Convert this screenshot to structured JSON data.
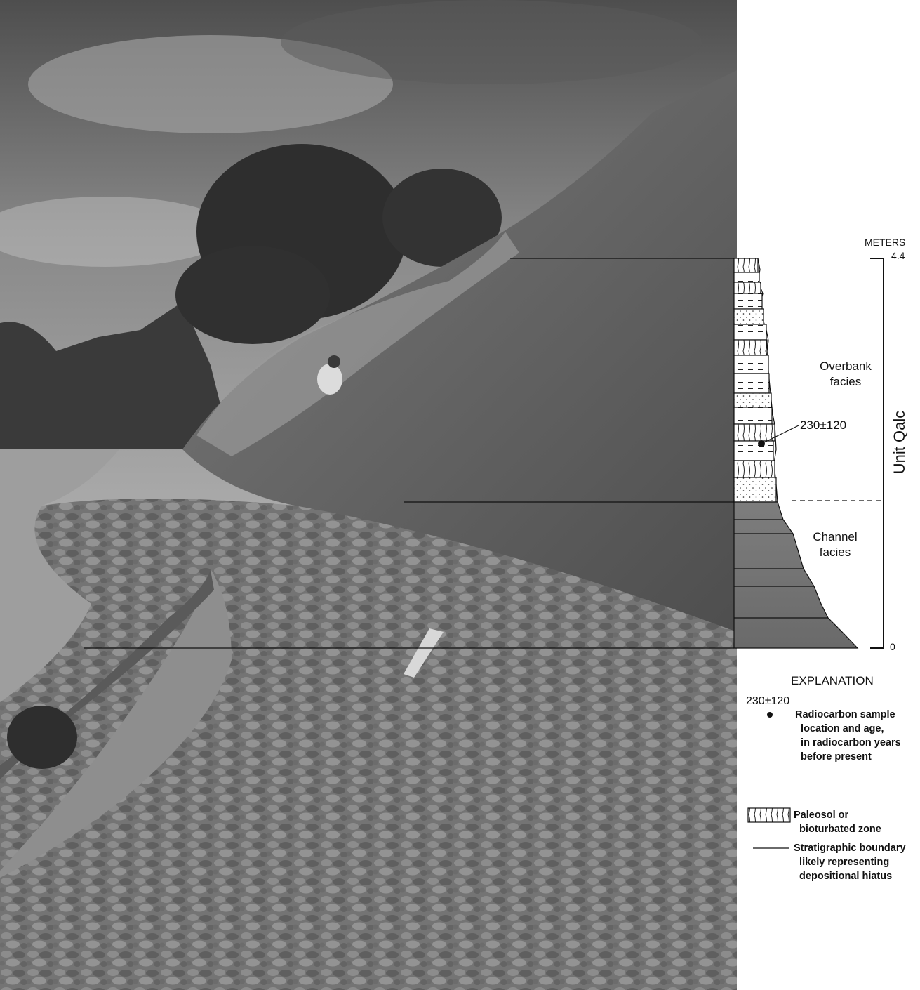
{
  "photo": {
    "description_icon": "field-photo-riverbank-icon"
  },
  "column": {
    "units": "METERS",
    "top_value": "4.4",
    "bottom_value": "0",
    "unit_name": "Unit Qalc",
    "overbank_label": "Overbank\nfacies",
    "channel_label": "Channel\nfacies",
    "sample_age": "230±120"
  },
  "explanation": {
    "title": "EXPLANATION",
    "radiocarbon_age": "230±120",
    "radiocarbon_text": "Radiocarbon sample\n  location and age,\n  in radiocarbon years\n  before present",
    "paleosol_text": "Paleosol or\n  bioturbated zone",
    "boundary_text": "Stratigraphic boundary\n  likely representing\n  depositional hiatus"
  }
}
